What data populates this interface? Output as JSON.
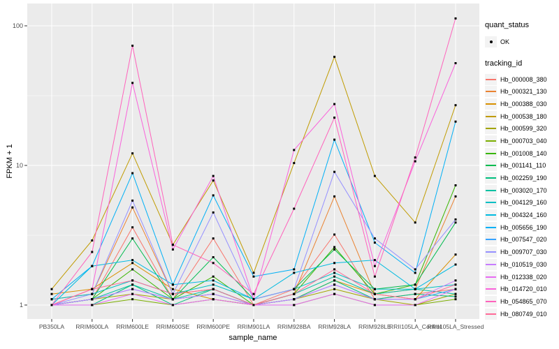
{
  "legend": {
    "quant_status_title": "quant_status",
    "quant_status_value": "OK",
    "quant_status_point": "black-point",
    "tracking_id_title": "tracking_id",
    "position": "right"
  },
  "chart_data": {
    "type": "line",
    "title": "",
    "xlabel": "sample_name",
    "ylabel": "FPKM + 1",
    "y_scale": "log10",
    "y_ticks": [
      1,
      10,
      100
    ],
    "y_tick_labels": [
      "1",
      "10",
      "100"
    ],
    "y_minor_ticks": [
      3.162,
      31.62
    ],
    "ylim": [
      0.79,
      145
    ],
    "grid": "on",
    "panel_bg": "#EBEBEB",
    "gridline_color": "#FFFFFF",
    "point_color": "#000000",
    "legend_position": "right",
    "categories": [
      "PB350LA",
      "RRIM600LA",
      "RRIM600LE",
      "RRIM600SE",
      "RRIM600PE",
      "RRIM901LA",
      "RRIM928BA",
      "RRIM928LA",
      "RRIM928LE",
      "RRII105LA_Control",
      "RRII105LA_Stressed"
    ],
    "series": [
      {
        "name": "Hb_000008_380",
        "color": "#F8766D",
        "values": [
          1.0,
          1.1,
          3.6,
          1.1,
          3.0,
          1.0,
          1.3,
          3.2,
          1.1,
          1.2,
          1.3
        ]
      },
      {
        "name": "Hb_000321_130",
        "color": "#EA8331",
        "values": [
          1.1,
          1.2,
          5.0,
          1.2,
          1.3,
          1.0,
          1.2,
          6.0,
          1.2,
          1.3,
          6.0
        ]
      },
      {
        "name": "Hb_000388_030",
        "color": "#D89000",
        "values": [
          1.2,
          1.3,
          2.0,
          1.3,
          1.1,
          1.0,
          1.1,
          1.5,
          1.2,
          1.1,
          2.3
        ]
      },
      {
        "name": "Hb_000538_180",
        "color": "#C09B00",
        "values": [
          1.3,
          2.9,
          12.2,
          2.7,
          7.8,
          1.7,
          10.4,
          60.0,
          8.4,
          3.9,
          27.0
        ]
      },
      {
        "name": "Hb_000599_320",
        "color": "#A3A500",
        "values": [
          1.0,
          1.1,
          1.2,
          1.1,
          1.2,
          1.0,
          1.1,
          1.3,
          1.1,
          1.0,
          1.2
        ]
      },
      {
        "name": "Hb_000703_040",
        "color": "#7CAE00",
        "values": [
          1.0,
          1.0,
          1.1,
          1.0,
          1.1,
          1.0,
          1.0,
          1.2,
          1.0,
          1.0,
          1.1
        ]
      },
      {
        "name": "Hb_001008_140",
        "color": "#39B600",
        "values": [
          1.0,
          1.1,
          1.8,
          1.1,
          1.6,
          1.0,
          1.2,
          2.6,
          1.2,
          1.4,
          7.2
        ]
      },
      {
        "name": "Hb_001141_110",
        "color": "#00BB4E",
        "values": [
          1.0,
          1.1,
          3.0,
          1.1,
          2.2,
          1.1,
          1.3,
          2.5,
          1.3,
          1.4,
          3.9
        ]
      },
      {
        "name": "Hb_002259_190",
        "color": "#00BF7D",
        "values": [
          1.0,
          1.0,
          1.4,
          1.0,
          1.3,
          1.0,
          1.1,
          1.5,
          1.1,
          1.2,
          1.15
        ]
      },
      {
        "name": "Hb_003020_170",
        "color": "#00C1A3",
        "values": [
          1.0,
          1.1,
          1.4,
          1.1,
          1.3,
          1.0,
          1.2,
          1.6,
          1.2,
          1.3,
          1.2
        ]
      },
      {
        "name": "Hb_004129_160",
        "color": "#00BFC4",
        "values": [
          1.1,
          1.2,
          1.5,
          1.2,
          1.4,
          1.1,
          1.3,
          1.7,
          1.3,
          1.3,
          1.4
        ]
      },
      {
        "name": "Hb_004324_160",
        "color": "#00BAE0",
        "values": [
          1.0,
          1.9,
          2.1,
          1.4,
          1.5,
          1.1,
          1.7,
          2.0,
          2.1,
          1.3,
          1.95
        ]
      },
      {
        "name": "Hb_005656_190",
        "color": "#00B0F6",
        "values": [
          1.1,
          1.9,
          8.8,
          1.4,
          6.1,
          1.6,
          1.8,
          15.3,
          2.8,
          1.7,
          20.6
        ]
      },
      {
        "name": "Hb_007547_020",
        "color": "#35A2FF",
        "values": [
          1.0,
          1.1,
          1.3,
          1.1,
          1.2,
          1.0,
          1.1,
          1.4,
          1.1,
          1.1,
          1.3
        ]
      },
      {
        "name": "Hb_009707_030",
        "color": "#9590FF",
        "values": [
          1.0,
          1.2,
          5.6,
          1.2,
          4.6,
          1.1,
          1.3,
          9.0,
          3.0,
          1.8,
          4.1
        ]
      },
      {
        "name": "Hb_010519_030",
        "color": "#C77CFF",
        "values": [
          1.0,
          1.1,
          1.3,
          1.1,
          1.2,
          1.0,
          1.1,
          1.4,
          1.1,
          1.1,
          1.5
        ]
      },
      {
        "name": "Hb_012338_020",
        "color": "#E76BF3",
        "values": [
          1.0,
          1.0,
          1.2,
          1.0,
          1.1,
          1.0,
          1.0,
          1.2,
          1.0,
          1.0,
          1.3
        ]
      },
      {
        "name": "Hb_014720_010",
        "color": "#FA62DB",
        "values": [
          1.0,
          1.3,
          39.0,
          2.5,
          8.4,
          1.1,
          12.9,
          27.5,
          1.9,
          10.7,
          54.0
        ]
      },
      {
        "name": "Hb_054865_070",
        "color": "#FF62BC",
        "values": [
          1.0,
          2.4,
          72.0,
          2.7,
          2.0,
          1.2,
          4.9,
          22.0,
          1.6,
          11.4,
          113.0
        ]
      },
      {
        "name": "Hb_080749_010",
        "color": "#FF6A98",
        "values": [
          1.0,
          1.3,
          1.5,
          1.2,
          1.3,
          1.0,
          1.2,
          1.8,
          1.2,
          1.1,
          1.4
        ]
      }
    ]
  }
}
